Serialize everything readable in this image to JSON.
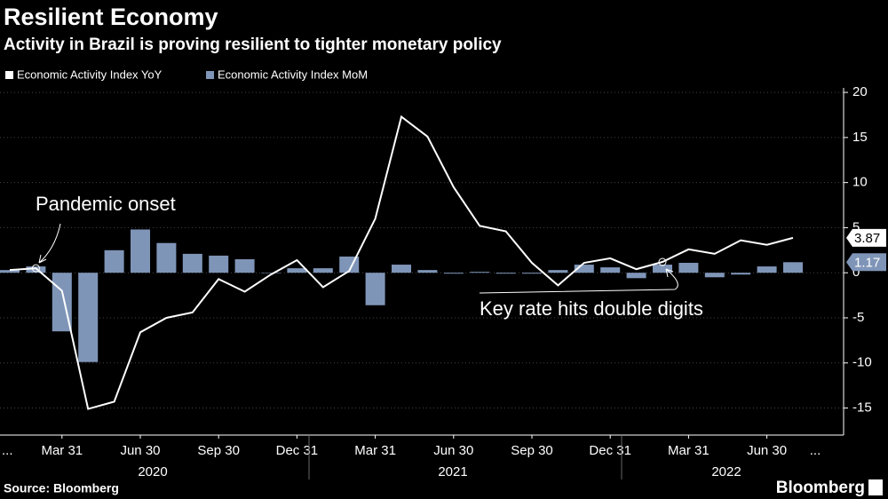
{
  "chart_data": {
    "type": "bar-line",
    "title": "Resilient Economy",
    "subtitle": "Activity in Brazil is proving resilient to tighter monetary policy",
    "source": "Source: Bloomberg",
    "brand": "Bloomberg",
    "categories": [
      null,
      null,
      "Mar 31",
      null,
      null,
      "Jun 30",
      null,
      null,
      "Sep 30",
      null,
      null,
      "Dec 31",
      null,
      null,
      "Mar 31",
      null,
      null,
      "Jun 30",
      null,
      null,
      "Sep 30",
      null,
      null,
      "Dec 31",
      null,
      null,
      "Mar 31",
      null,
      null,
      "Jun 30",
      null
    ],
    "x_edge_labels": [
      "...",
      "..."
    ],
    "years": [
      "2020",
      "2021",
      "2022"
    ],
    "series": [
      {
        "name": "Economic Activity Index MoM",
        "kind": "bar",
        "color": "#7f95b8",
        "values": [
          0.3,
          0.7,
          -6.5,
          -9.9,
          2.5,
          4.8,
          3.3,
          2.1,
          1.9,
          1.5,
          0,
          0.5,
          0.5,
          1.8,
          -3.6,
          0.9,
          0.3,
          -0.1,
          0.1,
          -0.1,
          -0.1,
          0.3,
          0.9,
          0.6,
          -0.6,
          0.9,
          1.1,
          -0.5,
          -0.2,
          0.7,
          1.17
        ]
      },
      {
        "name": "Economic Activity Index YoY",
        "kind": "line",
        "color": "#ffffff",
        "values": [
          0.3,
          0.5,
          -2,
          -15.1,
          -14.3,
          -6.6,
          -5,
          -4.4,
          -0.7,
          -2.1,
          -0.2,
          1.4,
          -1.6,
          0.2,
          6,
          17.3,
          15.1,
          9.5,
          5.2,
          4.6,
          1.1,
          -1.4,
          1.1,
          1.6,
          0.4,
          1.2,
          2.6,
          2.1,
          3.6,
          3.1,
          3.87
        ]
      }
    ],
    "annotations": [
      {
        "text": "Pandemic onset"
      },
      {
        "text": "Key rate hits double digits"
      }
    ],
    "ylim": [
      -18,
      20.5
    ],
    "yticks": [
      -15,
      -10,
      -5,
      0,
      5,
      10,
      15,
      20
    ],
    "grid": true
  }
}
